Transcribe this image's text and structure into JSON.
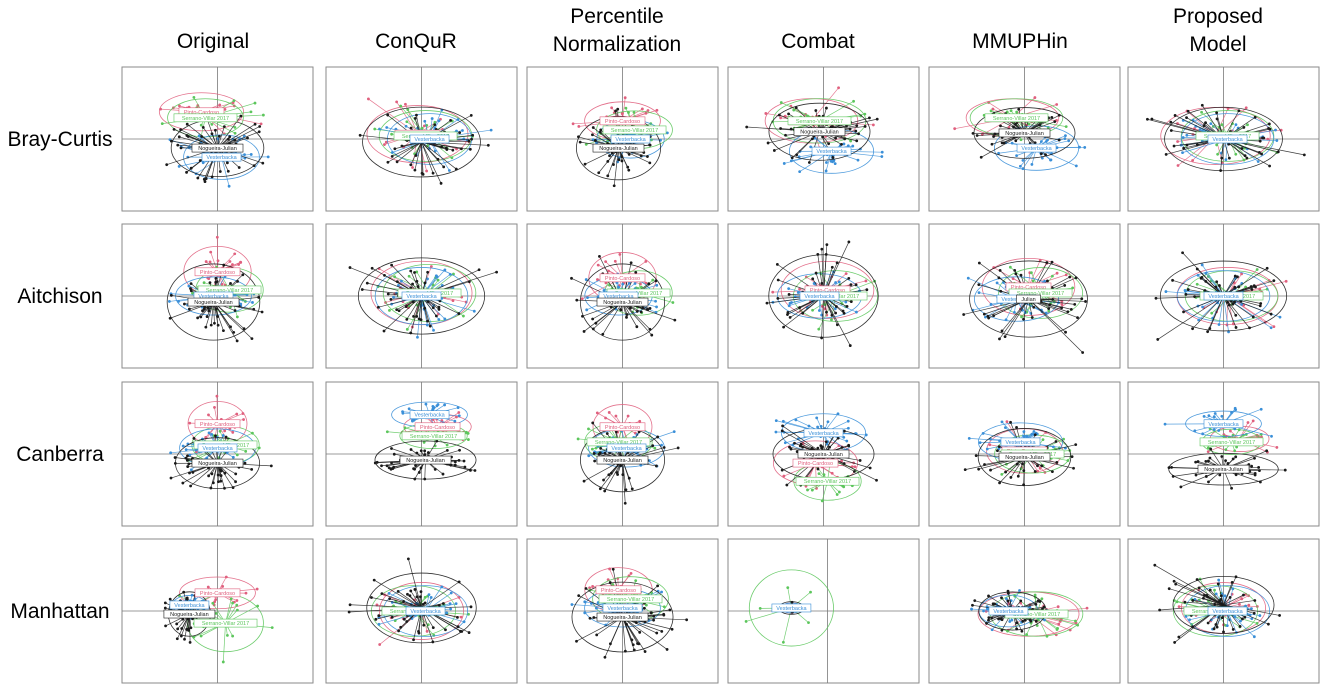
{
  "chart_data": {
    "type": "scatter",
    "subtype": "ordination-spider-plot-grid",
    "column_titles": [
      [
        "Original"
      ],
      [
        "ConQuR"
      ],
      [
        "Percentile",
        "Normalization"
      ],
      [
        "Combat"
      ],
      [
        "MMUPHin"
      ],
      [
        "Proposed",
        "Model"
      ]
    ],
    "row_titles": [
      "Bray-Curtis",
      "Aitchison",
      "Canberra",
      "Manhattan"
    ],
    "studies": [
      {
        "name": "Nogueira-Julian",
        "color": "#1a1a1a"
      },
      {
        "name": "Vesterbacka",
        "color": "#3a8fd8"
      },
      {
        "name": "Pinto-Cardoso",
        "color": "#e0607e"
      },
      {
        "name": "Serrano-Villar 2017",
        "color": "#5cc65c"
      }
    ],
    "panels": [
      [
        {
          "centers": [
            [
              0.0,
              -0.15
            ],
            [
              0.05,
              -0.3
            ],
            [
              -0.2,
              0.45
            ],
            [
              -0.15,
              0.35
            ]
          ],
          "spread": [
            [
              0.55,
              0.45
            ],
            [
              0.45,
              0.35
            ],
            [
              0.5,
              0.3
            ],
            [
              0.45,
              0.3
            ]
          ],
          "labels": [
            "Nogueira-Julian",
            "Vesterbacka",
            "Pinto-Cardoso",
            "Serrano-Villar 2017"
          ]
        },
        {
          "centers": [
            [
              0.0,
              -0.05
            ],
            [
              0.1,
              0.0
            ],
            [
              -0.05,
              0.08
            ],
            [
              0.05,
              0.05
            ]
          ],
          "spread": [
            [
              0.7,
              0.55
            ],
            [
              0.5,
              0.4
            ],
            [
              0.6,
              0.45
            ],
            [
              0.55,
              0.4
            ]
          ],
          "labels": [
            "",
            "Vesterbacka",
            "Pinto-Cardoso",
            "Serrano-Villar 2017"
          ]
        },
        {
          "centers": [
            [
              -0.05,
              -0.15
            ],
            [
              0.1,
              0.0
            ],
            [
              0.0,
              0.3
            ],
            [
              0.15,
              0.15
            ]
          ],
          "spread": [
            [
              0.5,
              0.5
            ],
            [
              0.4,
              0.3
            ],
            [
              0.45,
              0.3
            ],
            [
              0.45,
              0.3
            ]
          ],
          "labels": [
            "Nogueira-Julian",
            "Vesterbacka",
            "Pinto-Cardoso",
            "Serrano-Villar 2017"
          ]
        },
        {
          "centers": [
            [
              -0.05,
              0.12
            ],
            [
              0.1,
              -0.2
            ],
            [
              -0.15,
              0.3
            ],
            [
              -0.05,
              0.3
            ]
          ],
          "spread": [
            [
              0.6,
              0.45
            ],
            [
              0.5,
              0.35
            ],
            [
              0.55,
              0.35
            ],
            [
              0.55,
              0.35
            ]
          ],
          "labels": [
            "Nogueira-Julian",
            "Vesterbacka",
            "Pinto-Cardoso",
            "Serrano-Villar 2017"
          ]
        },
        {
          "centers": [
            [
              0.0,
              0.1
            ],
            [
              0.15,
              -0.15
            ],
            [
              -0.15,
              0.35
            ],
            [
              -0.1,
              0.35
            ]
          ],
          "spread": [
            [
              0.6,
              0.4
            ],
            [
              0.5,
              0.35
            ],
            [
              0.55,
              0.3
            ],
            [
              0.55,
              0.3
            ]
          ],
          "labels": [
            "Nogueira-Julian",
            "Vesterbacka",
            "Pinto-Cardoso",
            "Serrano-Villar 2017"
          ]
        },
        {
          "centers": [
            [
              0.0,
              0.0
            ],
            [
              0.05,
              0.0
            ],
            [
              -0.1,
              0.05
            ],
            [
              0.05,
              0.05
            ]
          ],
          "spread": [
            [
              0.7,
              0.5
            ],
            [
              0.55,
              0.4
            ],
            [
              0.65,
              0.45
            ],
            [
              0.55,
              0.4
            ]
          ],
          "labels": [
            "",
            "Vesterbacka",
            "",
            "Serrano-Villar 2017"
          ]
        }
      ],
      [
        {
          "centers": [
            [
              -0.05,
              -0.1
            ],
            [
              -0.05,
              0.0
            ],
            [
              0.0,
              0.4
            ],
            [
              0.15,
              0.1
            ]
          ],
          "spread": [
            [
              0.55,
              0.6
            ],
            [
              0.45,
              0.3
            ],
            [
              0.4,
              0.4
            ],
            [
              0.4,
              0.35
            ]
          ],
          "labels": [
            "Nogueira-Julian",
            "Vesterbacka",
            "Pinto-Cardoso",
            "Serrano-Villar 2017"
          ]
        },
        {
          "centers": [
            [
              0.0,
              0.0
            ],
            [
              0.0,
              0.0
            ],
            [
              0.0,
              0.05
            ],
            [
              0.1,
              0.05
            ]
          ],
          "spread": [
            [
              0.75,
              0.6
            ],
            [
              0.55,
              0.45
            ],
            [
              0.6,
              0.5
            ],
            [
              0.55,
              0.45
            ]
          ],
          "labels": [
            "",
            "Vesterbacka",
            "Pinto-Cardoso",
            "Serrano-Villar 2017"
          ]
        },
        {
          "centers": [
            [
              0.0,
              -0.1
            ],
            [
              -0.05,
              0.0
            ],
            [
              0.0,
              0.3
            ],
            [
              0.2,
              0.05
            ]
          ],
          "spread": [
            [
              0.5,
              0.6
            ],
            [
              0.4,
              0.3
            ],
            [
              0.4,
              0.4
            ],
            [
              0.4,
              0.35
            ]
          ],
          "labels": [
            "Nogueira-Julian",
            "Vesterbacka",
            "Pinto-Cardoso",
            "Serrano-Villar 2017"
          ]
        },
        {
          "centers": [
            [
              0.0,
              0.0
            ],
            [
              -0.05,
              0.0
            ],
            [
              0.05,
              0.1
            ],
            [
              0.15,
              0.0
            ]
          ],
          "spread": [
            [
              0.65,
              0.65
            ],
            [
              0.5,
              0.35
            ],
            [
              0.55,
              0.45
            ],
            [
              0.5,
              0.4
            ]
          ],
          "labels": [
            "",
            "Vesterbacka",
            "Pinto-Cardoso",
            "Serrano-Villar 2017"
          ]
        },
        {
          "centers": [
            [
              0.05,
              -0.05
            ],
            [
              -0.1,
              -0.05
            ],
            [
              0.05,
              0.15
            ],
            [
              0.2,
              0.05
            ]
          ],
          "spread": [
            [
              0.7,
              0.6
            ],
            [
              0.5,
              0.35
            ],
            [
              0.55,
              0.45
            ],
            [
              0.5,
              0.4
            ]
          ],
          "labels": [
            "Julian",
            "Vesterbacka",
            "Pinto-Cardoso",
            "Serrano-Villar 2017"
          ]
        },
        {
          "centers": [
            [
              0.0,
              0.0
            ],
            [
              0.0,
              0.0
            ],
            [
              0.05,
              0.0
            ],
            [
              0.1,
              0.0
            ]
          ],
          "spread": [
            [
              0.75,
              0.55
            ],
            [
              0.55,
              0.4
            ],
            [
              0.6,
              0.45
            ],
            [
              0.55,
              0.4
            ]
          ],
          "labels": [
            "",
            "Vesterbacka",
            "",
            "Serrano-Villar 2017"
          ]
        }
      ],
      [
        {
          "centers": [
            [
              0.0,
              -0.15
            ],
            [
              0.0,
              0.1
            ],
            [
              0.0,
              0.5
            ],
            [
              0.1,
              0.15
            ]
          ],
          "spread": [
            [
              0.5,
              0.4
            ],
            [
              0.45,
              0.3
            ],
            [
              0.35,
              0.35
            ],
            [
              0.4,
              0.3
            ]
          ],
          "labels": [
            "Nogueira-Julian",
            "Vesterbacka",
            "Pinto-Cardoso",
            "Serrano-Villar 2017"
          ]
        },
        {
          "centers": [
            [
              0.05,
              -0.1
            ],
            [
              0.1,
              0.65
            ],
            [
              0.2,
              0.45
            ],
            [
              0.15,
              0.3
            ]
          ],
          "spread": [
            [
              0.6,
              0.3
            ],
            [
              0.45,
              0.2
            ],
            [
              0.4,
              0.2
            ],
            [
              0.4,
              0.2
            ]
          ],
          "labels": [
            "Nogueira-Julian",
            "Vesterbacka",
            "Pinto-Cardoso",
            "Serrano-Villar 2017"
          ]
        },
        {
          "centers": [
            [
              0.0,
              -0.1
            ],
            [
              0.05,
              0.1
            ],
            [
              0.0,
              0.45
            ],
            [
              -0.05,
              0.2
            ]
          ],
          "spread": [
            [
              0.5,
              0.5
            ],
            [
              0.45,
              0.3
            ],
            [
              0.35,
              0.35
            ],
            [
              0.4,
              0.3
            ]
          ],
          "labels": [
            "Nogueira-Julian",
            "Vesterbacka",
            "Pinto-Cardoso",
            "Serrano-Villar 2017"
          ]
        },
        {
          "centers": [
            [
              0.0,
              0.0
            ],
            [
              0.0,
              0.35
            ],
            [
              -0.1,
              -0.15
            ],
            [
              0.05,
              -0.45
            ]
          ],
          "spread": [
            [
              0.6,
              0.4
            ],
            [
              0.5,
              0.3
            ],
            [
              0.5,
              0.35
            ],
            [
              0.4,
              0.3
            ]
          ],
          "labels": [
            "Nogueira-Julian",
            "Vesterbacka",
            "Pinto-Cardoso",
            "Serrano-Villar 2017"
          ]
        },
        {
          "centers": [
            [
              0.0,
              -0.05
            ],
            [
              -0.05,
              0.2
            ],
            [
              0.0,
              0.05
            ],
            [
              0.1,
              0.0
            ]
          ],
          "spread": [
            [
              0.55,
              0.45
            ],
            [
              0.5,
              0.3
            ],
            [
              0.45,
              0.35
            ],
            [
              0.45,
              0.3
            ]
          ],
          "labels": [
            "Nogueira-Julian",
            "Vesterbacka",
            "Pinto-Cardoso",
            "Serrano-Villar 2017"
          ]
        },
        {
          "centers": [
            [
              0.0,
              -0.25
            ],
            [
              0.0,
              0.5
            ],
            [
              0.2,
              0.25
            ],
            [
              0.1,
              0.2
            ]
          ],
          "spread": [
            [
              0.65,
              0.25
            ],
            [
              0.45,
              0.2
            ],
            [
              0.35,
              0.2
            ],
            [
              0.35,
              0.2
            ]
          ],
          "labels": [
            "Nogueira-Julian",
            "Vesterbacka",
            "",
            "Serrano-Villar 2017"
          ]
        }
      ],
      [
        {
          "centers": [
            [
              -0.35,
              -0.05
            ],
            [
              -0.35,
              0.1
            ],
            [
              0.0,
              0.3
            ],
            [
              0.1,
              -0.2
            ]
          ],
          "spread": [
            [
              0.25,
              0.35
            ],
            [
              0.2,
              0.15
            ],
            [
              0.45,
              0.25
            ],
            [
              0.45,
              0.45
            ]
          ],
          "labels": [
            "Nogueira-Julian",
            "Vesterbacka",
            "Pinto-Cardoso",
            "Serrano-Villar 2017"
          ]
        },
        {
          "centers": [
            [
              0.0,
              0.05
            ],
            [
              0.05,
              0.0
            ],
            [
              0.0,
              0.0
            ],
            [
              -0.1,
              0.0
            ]
          ],
          "spread": [
            [
              0.65,
              0.55
            ],
            [
              0.5,
              0.4
            ],
            [
              0.5,
              0.45
            ],
            [
              0.5,
              0.4
            ]
          ],
          "labels": [
            "",
            "Vesterbacka",
            "",
            "Serrano-Villar 2017"
          ]
        },
        {
          "centers": [
            [
              0.0,
              -0.1
            ],
            [
              0.0,
              0.05
            ],
            [
              -0.05,
              0.35
            ],
            [
              0.1,
              0.2
            ]
          ],
          "spread": [
            [
              0.6,
              0.55
            ],
            [
              0.45,
              0.3
            ],
            [
              0.4,
              0.35
            ],
            [
              0.45,
              0.35
            ]
          ],
          "labels": [
            "Nogueira-Julian",
            "Vesterbacka",
            "Pinto-Cardoso",
            "Serrano-Villar 2017"
          ]
        },
        {
          "centers": [
            [
              -0.4,
              0.05
            ],
            [
              -0.4,
              0.05
            ],
            [
              -0.4,
              0.05
            ],
            [
              -0.4,
              0.05
            ]
          ],
          "spread": [
            [
              0.15,
              0.1
            ],
            [
              0.12,
              0.08
            ],
            [
              0.12,
              0.08
            ],
            [
              0.5,
              0.6
            ]
          ],
          "labels": [
            "",
            "Vesterbacka",
            "",
            ""
          ]
        },
        {
          "centers": [
            [
              -0.15,
              0.0
            ],
            [
              -0.2,
              0.0
            ],
            [
              0.05,
              -0.05
            ],
            [
              0.15,
              -0.05
            ]
          ],
          "spread": [
            [
              0.4,
              0.3
            ],
            [
              0.35,
              0.25
            ],
            [
              0.6,
              0.35
            ],
            [
              0.55,
              0.35
            ]
          ],
          "labels": [
            "",
            "Vesterbacka",
            "",
            "Serrano-Villar 2017"
          ]
        },
        {
          "centers": [
            [
              0.0,
              0.1
            ],
            [
              0.05,
              0.0
            ],
            [
              0.0,
              0.05
            ],
            [
              -0.1,
              0.0
            ]
          ],
          "spread": [
            [
              0.6,
              0.45
            ],
            [
              0.5,
              0.4
            ],
            [
              0.5,
              0.4
            ],
            [
              0.5,
              0.4
            ]
          ],
          "labels": [
            "",
            "Vesterbacka",
            "",
            "Serrano-Villar 2017"
          ]
        }
      ]
    ],
    "axes": {
      "xlim": [
        -1,
        1
      ],
      "ylim": [
        -1,
        1
      ],
      "grid": false
    },
    "legend": "none"
  }
}
